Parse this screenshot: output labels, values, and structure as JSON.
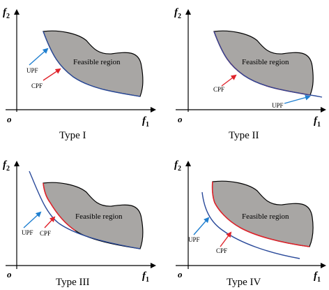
{
  "panels": [
    {
      "id": "type-1",
      "type_label": "Type I",
      "region_label": "Feasible region",
      "upf_label": "UPF",
      "cpf_label": "CPF",
      "x_axis": "f",
      "x_sub": "1",
      "y_axis": "f",
      "y_sub": "2",
      "origin": "o"
    },
    {
      "id": "type-2",
      "type_label": "Type II",
      "region_label": "Feasible region",
      "upf_label": "UPF",
      "cpf_label": "CPF",
      "x_axis": "f",
      "x_sub": "1",
      "y_axis": "f",
      "y_sub": "2",
      "origin": "o"
    },
    {
      "id": "type-3",
      "type_label": "Type III",
      "region_label": "Feasible region",
      "upf_label": "UPF",
      "cpf_label": "CPF",
      "x_axis": "f",
      "x_sub": "1",
      "y_axis": "f",
      "y_sub": "2",
      "origin": "o"
    },
    {
      "id": "type-4",
      "type_label": "Type IV",
      "region_label": "Feasible region",
      "upf_label": "UPF",
      "cpf_label": "CPF",
      "x_axis": "f",
      "x_sub": "1",
      "y_axis": "f",
      "y_sub": "2",
      "origin": "o"
    }
  ],
  "colors": {
    "region_fill": "#a8a6a4",
    "cpf": "#e0232b",
    "upf": "#2a4a9a",
    "upf_arrow": "#1f7fd0"
  }
}
